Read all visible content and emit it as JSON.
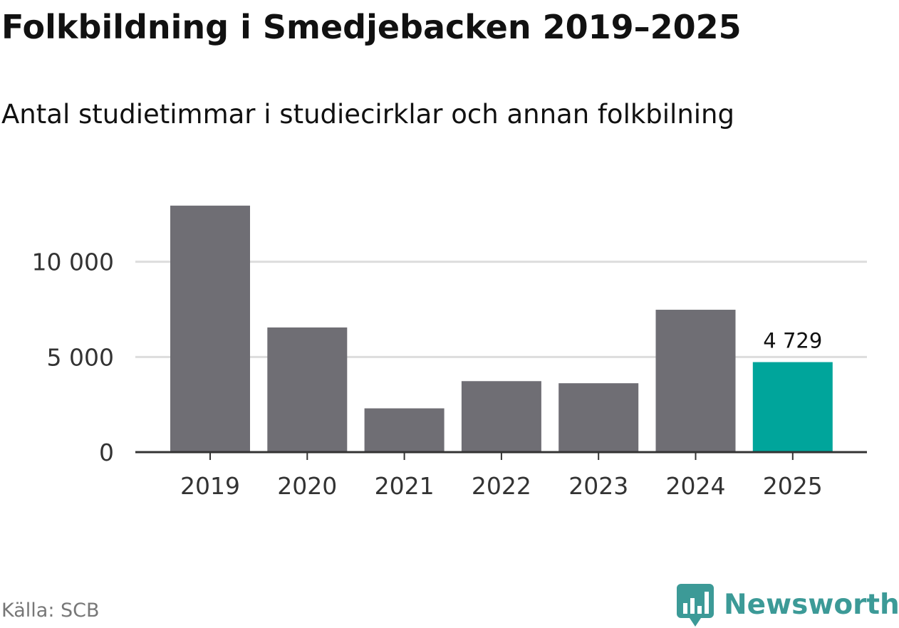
{
  "header": {
    "title": "Folkbildning i Smedjebacken 2019–2025",
    "subtitle": "Antal studietimmar i studiecirklar och annan folkbilning"
  },
  "footer": {
    "source": "Källa: SCB",
    "brand": "Newsworthy"
  },
  "colors": {
    "bar": "#6f6e74",
    "highlight": "#00a59b",
    "grid": "#dddddd",
    "axis": "#333333",
    "brand": "#3c9a97"
  },
  "chart_data": {
    "type": "bar",
    "title": "Folkbildning i Smedjebacken 2019–2025",
    "subtitle": "Antal studietimmar i studiecirklar och annan folkbilning",
    "xlabel": "",
    "ylabel": "",
    "categories": [
      "2019",
      "2020",
      "2021",
      "2022",
      "2023",
      "2024",
      "2025"
    ],
    "values": [
      12950,
      6550,
      2300,
      3730,
      3620,
      7480,
      4729
    ],
    "highlight_index": 6,
    "data_labels": [
      {
        "index": 6,
        "text": "4 729"
      }
    ],
    "ylim": [
      0,
      14000
    ],
    "yticks": [
      0,
      5000,
      10000
    ],
    "ytick_labels": [
      "0",
      "5 000",
      "10 000"
    ],
    "grid": true,
    "legend": "none"
  }
}
